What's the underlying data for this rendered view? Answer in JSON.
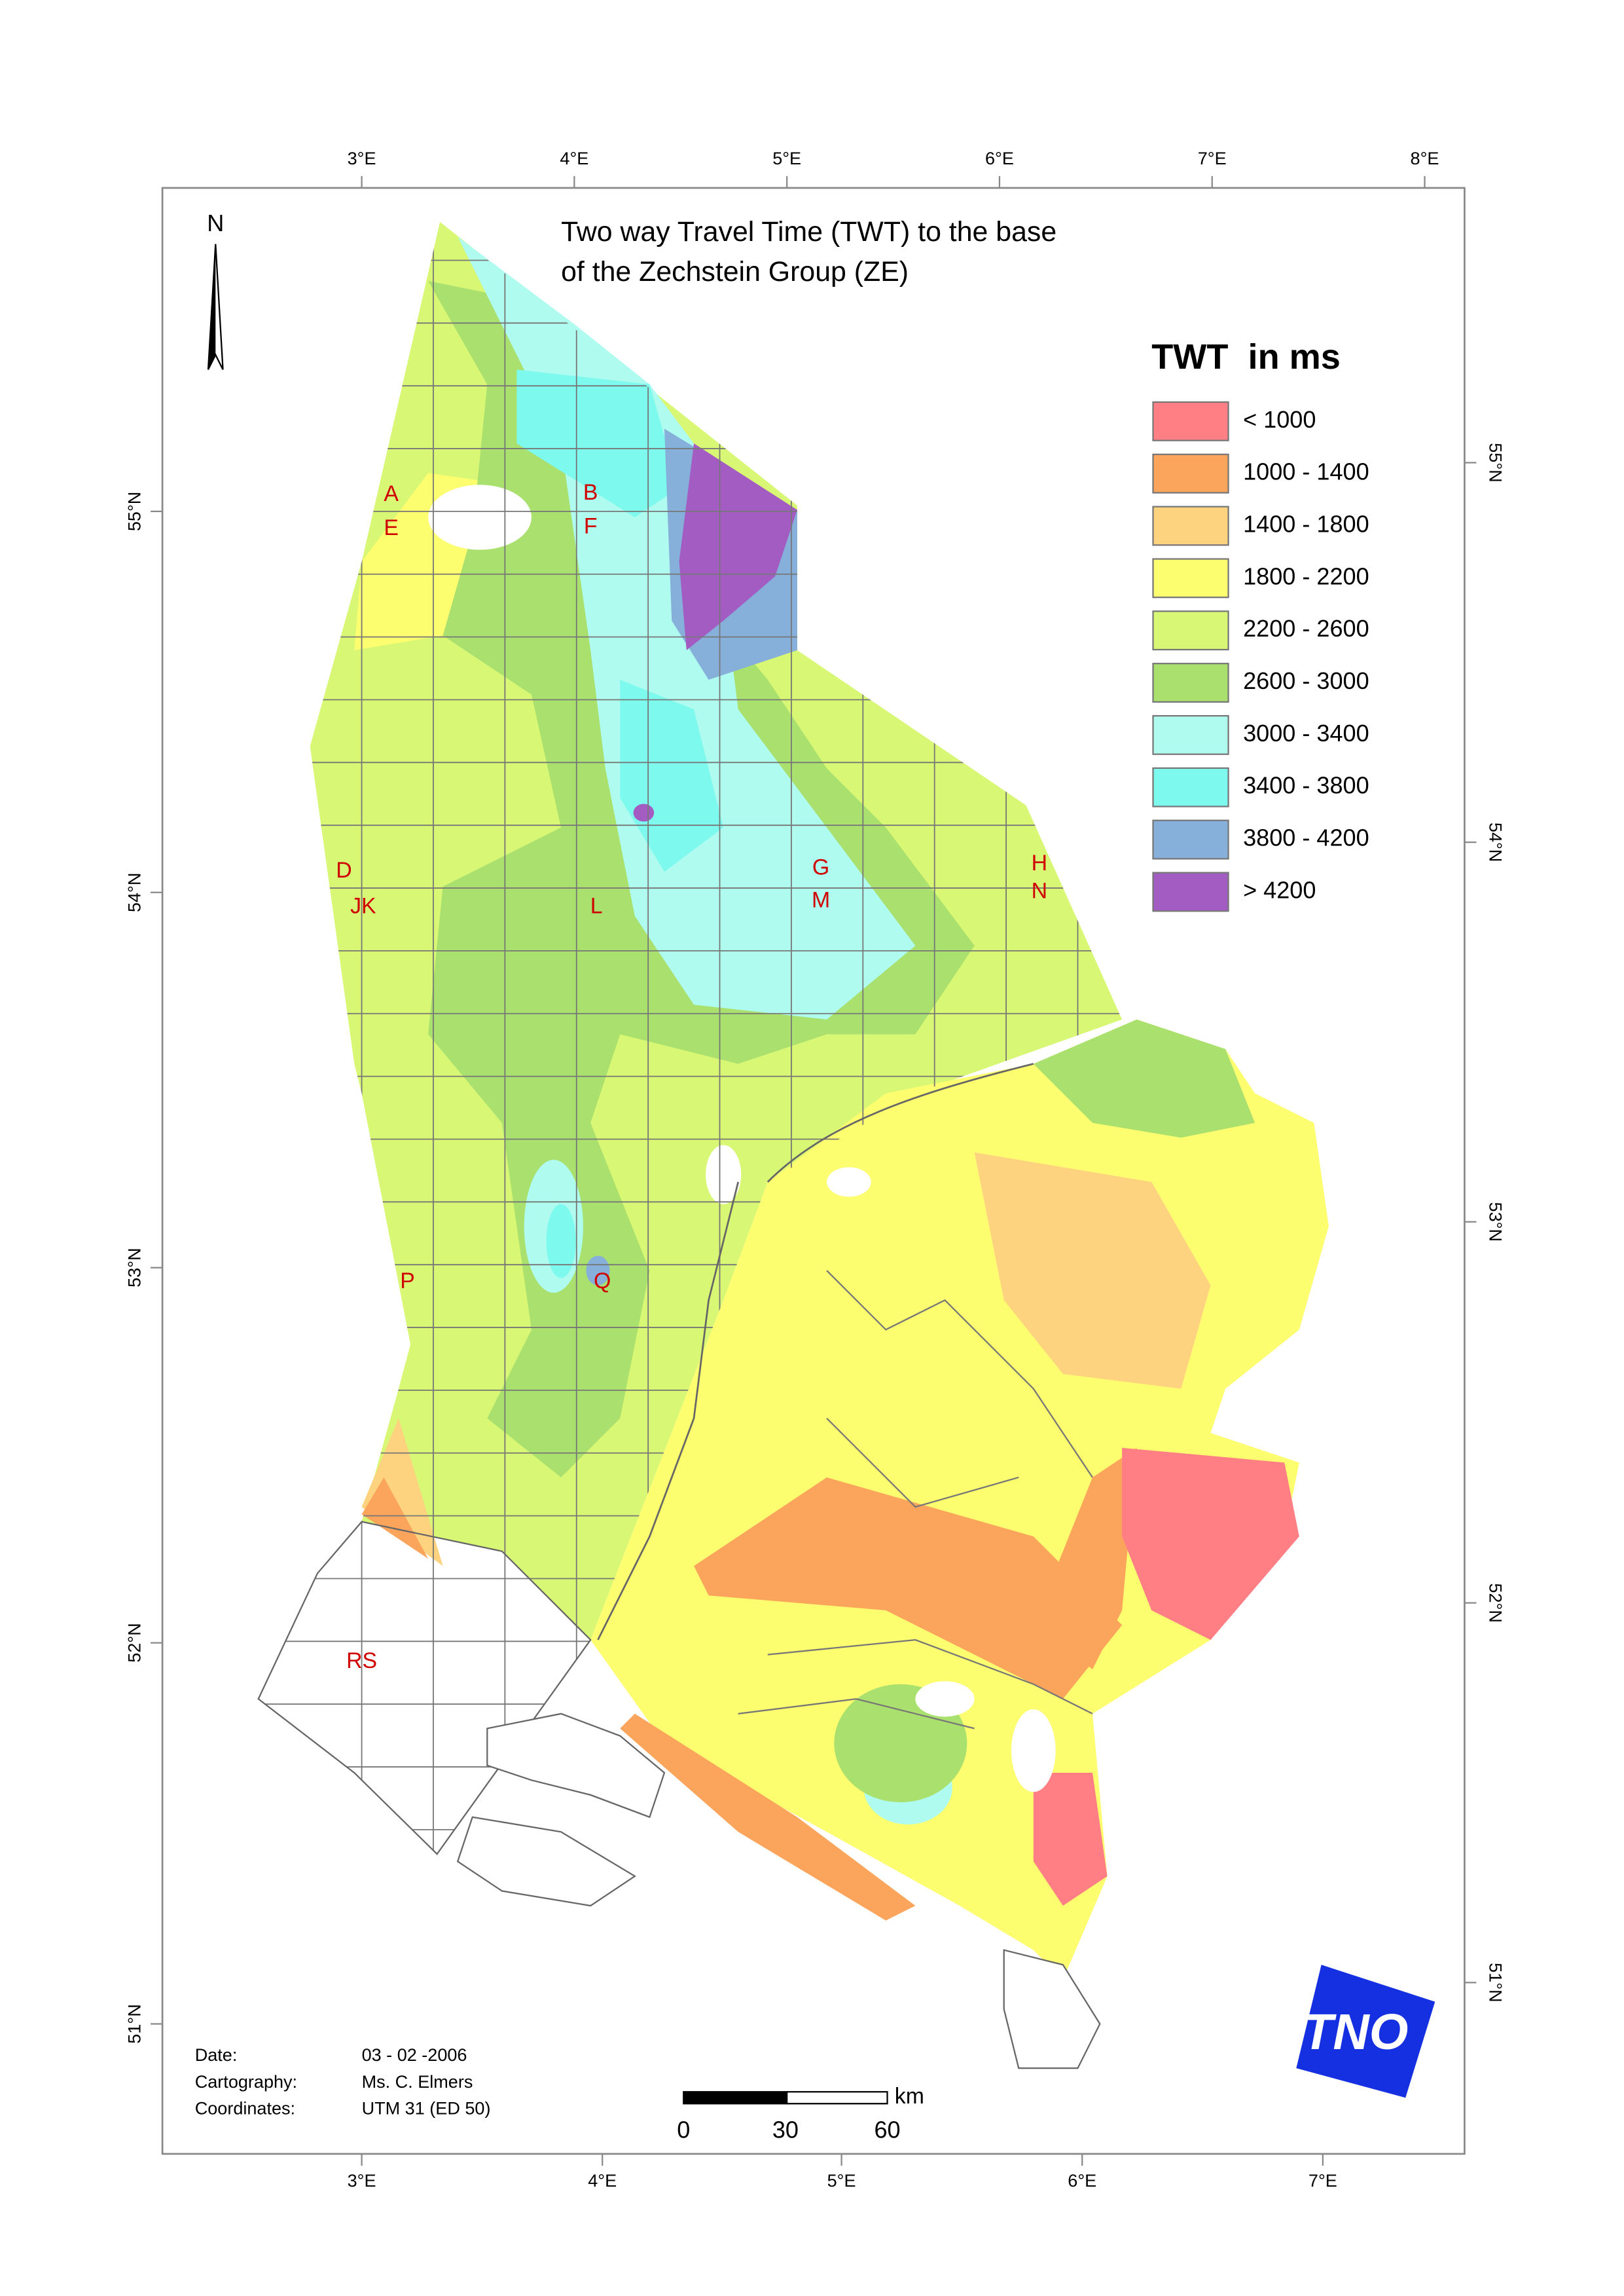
{
  "title": [
    "Two way Travel Time (TWT) to the base",
    "of the Zechstein Group (ZE)"
  ],
  "north": "N",
  "legend": {
    "title": "TWT  in ms",
    "items": [
      {
        "label": "< 1000",
        "color": "#ff7f85"
      },
      {
        "label": "1000 - 1400",
        "color": "#fba55c"
      },
      {
        "label": "1400 - 1800",
        "color": "#fed37f"
      },
      {
        "label": "1800 - 2200",
        "color": "#fdfd70"
      },
      {
        "label": "2200 - 2600",
        "color": "#d8f774"
      },
      {
        "label": "2600 - 3000",
        "color": "#a9e06e"
      },
      {
        "label": "3000 - 3400",
        "color": "#b0fbf0"
      },
      {
        "label": "3400 - 3800",
        "color": "#7ef9ee"
      },
      {
        "label": "3800 - 4200",
        "color": "#86afd9"
      },
      {
        "label": "> 4200",
        "color": "#a25cc2"
      }
    ]
  },
  "graticule": {
    "top": [
      "3°E",
      "4°E",
      "5°E",
      "6°E",
      "7°E",
      "8°E"
    ],
    "bottom": [
      "3°E",
      "4°E",
      "5°E",
      "6°E",
      "7°E"
    ],
    "left": [
      "55°N",
      "54°N",
      "53°N",
      "52°N",
      "51°N"
    ],
    "right": [
      "55°N",
      "54°N",
      "53°N",
      "52°N",
      "51°N"
    ]
  },
  "block_labels": [
    "A",
    "E",
    "B",
    "F",
    "D",
    "JK",
    "L",
    "G",
    "M",
    "H",
    "N",
    "P",
    "Q",
    "RS"
  ],
  "metadata": [
    [
      "Date:",
      "03 - 02 -2006"
    ],
    [
      "Cartography:",
      "Ms. C. Elmers"
    ],
    [
      "Coordinates:",
      "UTM 31 (ED 50)"
    ]
  ],
  "scale_bar": {
    "unit": "km",
    "ticks": [
      0,
      30,
      60
    ]
  },
  "logo": "TNO"
}
